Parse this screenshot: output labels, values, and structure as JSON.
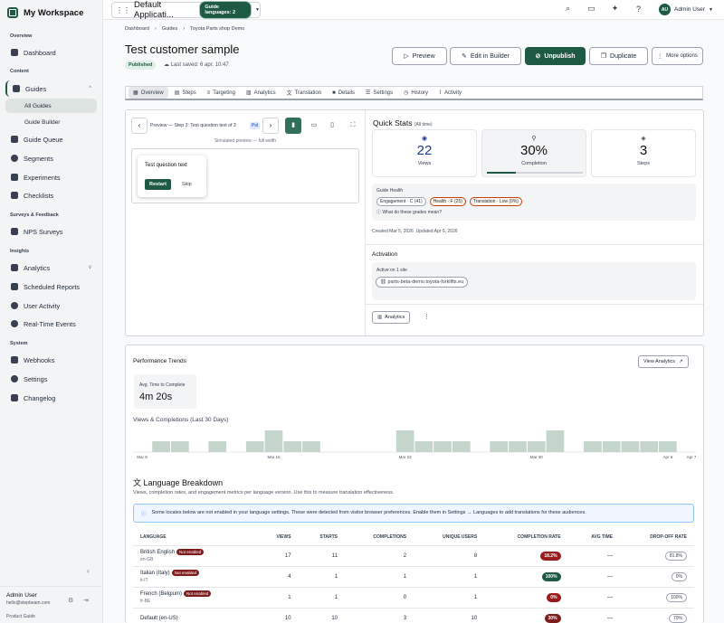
{
  "workspace": {
    "title": "My Workspace"
  },
  "sidebar": {
    "sections": {
      "overview": "Overview",
      "content": "Content",
      "surveys": "Surveys & Feedback",
      "insights": "Insights",
      "system": "System"
    },
    "items": {
      "dashboard": "Dashboard",
      "guides": "Guides",
      "all_guides": "All Guides",
      "guide_builder": "Guide Builder",
      "guide_queue": "Guide Queue",
      "segments": "Segments",
      "experiments": "Experiments",
      "checklists": "Checklists",
      "nps": "NPS Surveys",
      "analytics": "Analytics",
      "scheduled": "Scheduled Reports",
      "user_activity": "User Activity",
      "realtime": "Real-Time Events",
      "webhooks": "Webhooks",
      "settings": "Settings",
      "changelog": "Changelog"
    },
    "footer": {
      "name": "Admin User",
      "email": "hello@stepbeam.com",
      "guide": "Product Guide"
    }
  },
  "topbar": {
    "app_name": "Default Applicati...",
    "lang_pill": "Guide languages: 2",
    "user": "Admin User",
    "avatar": "AU"
  },
  "breadcrumb": [
    "Dashboard",
    "Guides",
    "Toyota Parts shop Demo"
  ],
  "guide": {
    "title": "Test customer sample",
    "status": "Published",
    "saved": "Last saved: 6 apr. 10:47"
  },
  "actions": {
    "preview": "Preview",
    "edit": "Edit in Builder",
    "unpublish": "Unpublish",
    "duplicate": "Duplicate",
    "more": "More options"
  },
  "tabs": [
    "Overview",
    "Steps",
    "Targeting",
    "Analytics",
    "Translation",
    "Details",
    "Settings",
    "History",
    "Activity"
  ],
  "preview": {
    "step_label": "Preview — Step 3: Test question text of 3",
    "pol": "Pol",
    "sim": "Simulated preview — full width",
    "question": "Test question text",
    "restart": "Restart",
    "skip": "Skip"
  },
  "quick_stats": {
    "title": "Quick Stats",
    "range": "(All time)",
    "views": "22",
    "views_label": "Views",
    "completion": "30%",
    "completion_label": "Completion",
    "completion_fraction": 0.3,
    "steps": "3",
    "steps_label": "Steps"
  },
  "health": {
    "title": "Guide Health",
    "engagement": "Engagement · C (41)",
    "health": "Health · F (25)",
    "translation": "Translation · Low (0%)",
    "grades_link": "What do these grades mean?",
    "created": "Created Mar 5, 2026",
    "updated": "Updated Apr 6, 2026"
  },
  "activation": {
    "title": "Activation",
    "active": "Active on 1 site",
    "site": "parts-beta-demo.toyota-forklifts.eu",
    "analytics_btn": "Analytics"
  },
  "trends": {
    "title": "Performance Trends",
    "view_analytics": "View Analytics",
    "avg_label": "Avg. Time to Complete",
    "avg_value": "4m 20s",
    "chart_title": "Views & Completions (Last 30 Days)"
  },
  "chart_data": {
    "type": "bar",
    "title": "Views & Completions (Last 30 Days)",
    "x_tick_labels": [
      "Mar 9",
      "Mar 16",
      "Mar 23",
      "Mar 30",
      "Apr 6",
      "Apr 7"
    ],
    "values": [
      0,
      1,
      1,
      0,
      1,
      0,
      1,
      2,
      1,
      1,
      0,
      0,
      0,
      0,
      2,
      1,
      1,
      1,
      0,
      1,
      1,
      1,
      2,
      0,
      1,
      1,
      1,
      1,
      1,
      0
    ],
    "ylim": [
      0,
      2
    ]
  },
  "languages": {
    "title": "Language Breakdown",
    "subtitle": "Views, completion rates, and engagement metrics per language version. Use this to measure translation effectiveness.",
    "notice": "Some locales below are not enabled in your language settings. These were detected from visitor browser preferences. Enable them in Settings → Languages to add translations for these audiences.",
    "columns": [
      "LANGUAGE",
      "VIEWS",
      "STARTS",
      "COMPLETIONS",
      "UNIQUE USERS",
      "COMPLETION RATE",
      "AVG TIME",
      "DROP-OFF RATE"
    ],
    "not_enabled": "Not enabled",
    "rows": [
      {
        "name": "British English",
        "code": "en-GB",
        "ne": true,
        "views": "17",
        "starts": "11",
        "comp": "2",
        "users": "8",
        "rate": "18.2%",
        "rate_color": "#991b1b",
        "avg": "—",
        "drop": "81.8%"
      },
      {
        "name": "Italian (Italy)",
        "code": "it-IT",
        "ne": true,
        "views": "4",
        "starts": "1",
        "comp": "1",
        "users": "1",
        "rate": "100%",
        "rate_color": "#1f5a44",
        "avg": "—",
        "drop": "0%"
      },
      {
        "name": "French (Belgium)",
        "code": "fr-BE",
        "ne": true,
        "views": "1",
        "starts": "1",
        "comp": "0",
        "users": "1",
        "rate": "0%",
        "rate_color": "#991b1b",
        "avg": "—",
        "drop": "100%"
      },
      {
        "name": "Default (en-US)",
        "code": "",
        "ne": false,
        "views": "10",
        "starts": "10",
        "comp": "3",
        "users": "10",
        "rate": "30%",
        "rate_color": "#7f1d1d",
        "avg": "—",
        "drop": "70%"
      }
    ]
  }
}
